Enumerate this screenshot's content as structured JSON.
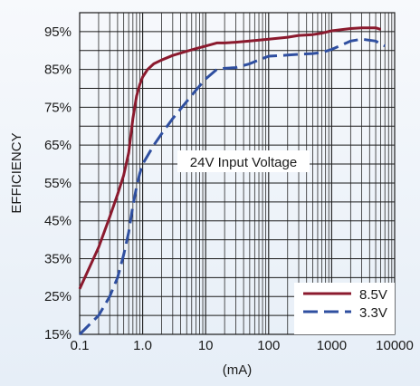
{
  "chart_data": {
    "type": "line",
    "xscale": "log",
    "xlim": [
      0.1,
      10000
    ],
    "ylim": [
      15,
      100
    ],
    "x_tick_labels": [
      "0.1",
      "1.0",
      "10",
      "100",
      "1000",
      "10000"
    ],
    "y_tick_labels": [
      "15%",
      "25%",
      "35%",
      "45%",
      "55%",
      "65%",
      "75%",
      "85%",
      "95%"
    ],
    "xlabel": "(mA)",
    "ylabel": "EFFICIENCY",
    "annotation": "24V Input Voltage",
    "legend_position": "bottom-right",
    "grid": true,
    "series": [
      {
        "name": "8.5V",
        "color": "#8b1a2e",
        "style": "solid",
        "x": [
          0.1,
          0.2,
          0.3,
          0.4,
          0.5,
          0.6,
          0.7,
          0.8,
          0.9,
          1.0,
          1.2,
          1.5,
          2,
          3,
          5,
          7,
          10,
          15,
          20,
          30,
          50,
          100,
          200,
          300,
          500,
          700,
          1000,
          2000,
          3000,
          5000,
          6000
        ],
        "y": [
          27,
          38,
          46,
          52,
          57,
          63,
          72,
          78,
          81,
          83,
          85,
          86.5,
          87.5,
          88.7,
          89.8,
          90.5,
          91.2,
          92,
          92,
          92.2,
          92.5,
          93,
          93.5,
          94,
          94.2,
          94.6,
          95.2,
          95.8,
          96,
          96,
          95.6
        ]
      },
      {
        "name": "3.3V",
        "color": "#2f4fa0",
        "style": "dashed",
        "x": [
          0.1,
          0.2,
          0.3,
          0.4,
          0.5,
          0.6,
          0.7,
          0.8,
          0.9,
          1.0,
          1.5,
          2,
          3,
          5,
          7,
          10,
          15,
          20,
          30,
          50,
          70,
          100,
          200,
          300,
          500,
          700,
          1000,
          2000,
          3000,
          5000,
          7000
        ],
        "y": [
          15,
          20,
          25,
          30,
          36,
          42,
          49,
          54,
          57.5,
          60,
          65,
          68,
          72,
          76.5,
          79.5,
          82.5,
          85,
          85.3,
          85.5,
          86.5,
          87.5,
          88.5,
          88.8,
          89,
          89.2,
          89.5,
          90.3,
          92.5,
          93,
          92.5,
          91.2
        ]
      }
    ]
  }
}
